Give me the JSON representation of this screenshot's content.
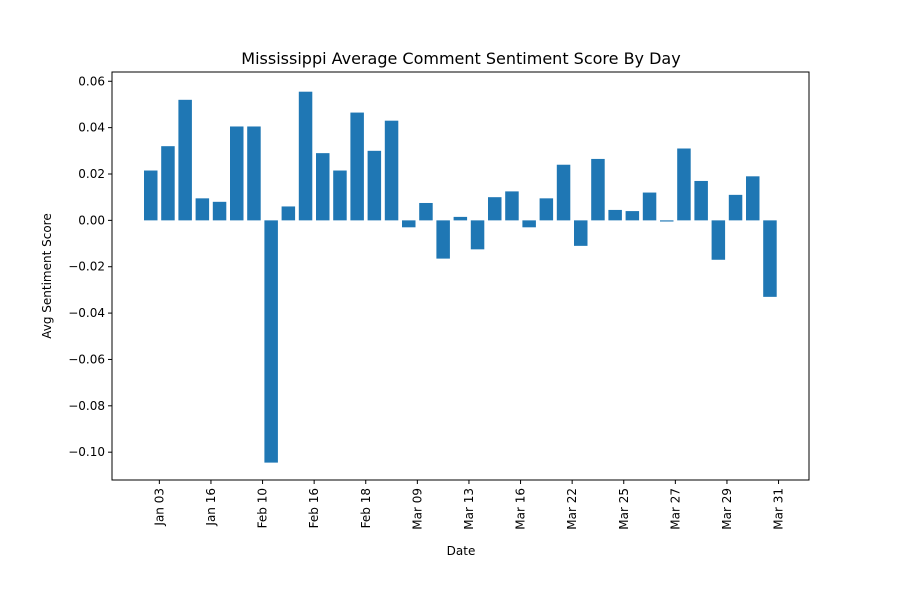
{
  "chart_data": {
    "type": "bar",
    "title": "Mississippi Average Comment Sentiment Score By Day",
    "xlabel": "Date",
    "ylabel": "Avg Sentiment Score",
    "ylim": [
      -0.112,
      0.064
    ],
    "yticks": [
      0.06,
      0.04,
      0.02,
      0.0,
      -0.02,
      -0.04,
      -0.06,
      -0.08,
      -0.1
    ],
    "ytick_labels": [
      "0.06",
      "0.04",
      "0.02",
      "0.00",
      "−0.02",
      "−0.04",
      "−0.06",
      "−0.08",
      "−0.10"
    ],
    "xtick_labels": [
      "Jan 03",
      "Jan 16",
      "Feb 10",
      "Feb 16",
      "Feb 18",
      "Mar 09",
      "Mar 13",
      "Mar 16",
      "Mar 22",
      "Mar 25",
      "Mar 27",
      "Mar 29",
      "Mar 31"
    ],
    "xtick_bar_index": [
      0.5,
      3.5,
      6.5,
      9.5,
      12.5,
      15.5,
      18.5,
      21.5,
      24.5,
      27.5,
      30.5,
      33.5,
      36.5
    ],
    "values": [
      0.0215,
      0.032,
      0.052,
      0.0095,
      0.008,
      0.0405,
      0.0405,
      -0.1045,
      0.006,
      0.0555,
      0.029,
      0.0215,
      0.0465,
      0.03,
      0.043,
      -0.003,
      0.0075,
      -0.0165,
      0.0015,
      -0.0125,
      0.01,
      0.0125,
      -0.003,
      0.0095,
      0.024,
      -0.011,
      0.0265,
      0.0045,
      0.004,
      0.012,
      -0.0005,
      0.031,
      0.017,
      -0.017,
      0.011,
      0.019,
      -0.033
    ],
    "bar_color": "#1f77b4",
    "grid": false,
    "legend": "none"
  }
}
